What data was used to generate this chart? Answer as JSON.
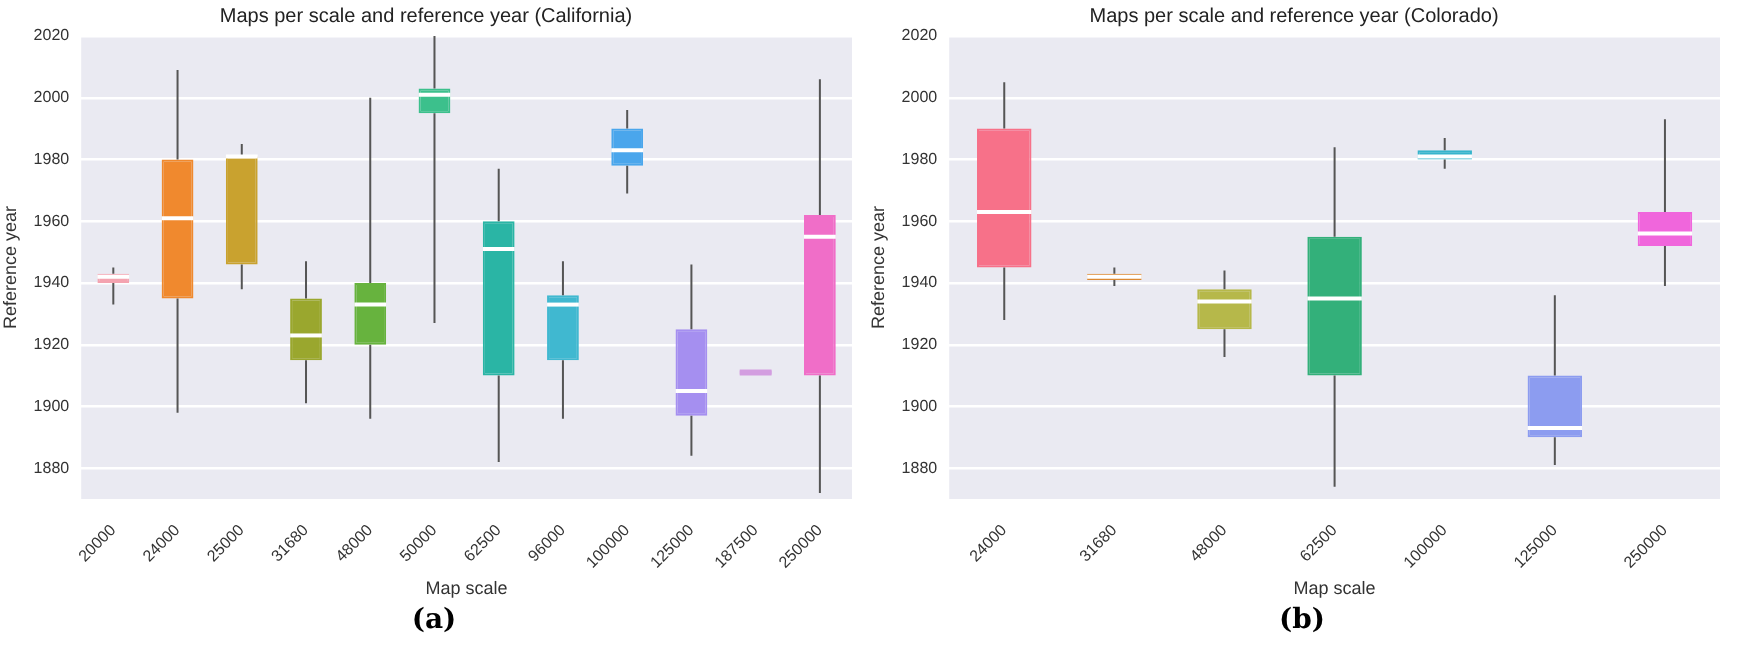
{
  "chart_data": [
    {
      "type": "box",
      "title": "Maps per scale and reference year (California)",
      "xlabel": "Map scale",
      "ylabel": "Reference year",
      "categories": [
        "20000",
        "24000",
        "25000",
        "31680",
        "48000",
        "50000",
        "62500",
        "96000",
        "100000",
        "125000",
        "187500",
        "250000"
      ],
      "boxes": [
        {
          "low": 1933,
          "q1": 1940,
          "median": 1942,
          "q3": 1943,
          "high": 1945
        },
        {
          "low": 1898,
          "q1": 1935,
          "median": 1961,
          "q3": 1980,
          "high": 2009
        },
        {
          "low": 1938,
          "q1": 1946,
          "median": 1981,
          "q3": 1981,
          "high": 1985
        },
        {
          "low": 1901,
          "q1": 1915,
          "median": 1923,
          "q3": 1935,
          "high": 1947
        },
        {
          "low": 1896,
          "q1": 1920,
          "median": 1933,
          "q3": 1940,
          "high": 2000
        },
        {
          "low": 1927,
          "q1": 1995,
          "median": 2001,
          "q3": 2003,
          "high": 2020
        },
        {
          "low": 1882,
          "q1": 1910,
          "median": 1951,
          "q3": 1960,
          "high": 1977
        },
        {
          "low": 1896,
          "q1": 1915,
          "median": 1933,
          "q3": 1936,
          "high": 1947
        },
        {
          "low": 1969,
          "q1": 1978,
          "median": 1983,
          "q3": 1990,
          "high": 1996
        },
        {
          "low": 1884,
          "q1": 1897,
          "median": 1905,
          "q3": 1925,
          "high": 1946
        },
        {
          "low": 1911,
          "q1": 1911,
          "median": 1911,
          "q3": 1911,
          "high": 1911
        },
        {
          "low": 1872,
          "q1": 1910,
          "median": 1955,
          "q3": 1962,
          "high": 2006
        }
      ],
      "colors": [
        "#f4a3b0",
        "#f0892e",
        "#c9a22f",
        "#9aa72e",
        "#67b33e",
        "#3cc08c",
        "#2ab5a5",
        "#40b8d0",
        "#4aa6ec",
        "#a58ff0",
        "#d39ee0",
        "#f06ec8"
      ],
      "ylim": [
        1870,
        2020
      ],
      "yticks": [
        1880,
        1900,
        1920,
        1940,
        1960,
        1980,
        2000,
        2020
      ],
      "grid": "y",
      "legend": false,
      "annotations": [
        "(a)"
      ]
    },
    {
      "type": "box",
      "title": "Maps per scale and reference year (Colorado)",
      "xlabel": "Map scale",
      "ylabel": "Reference year",
      "categories": [
        "24000",
        "31680",
        "48000",
        "62500",
        "100000",
        "125000",
        "250000"
      ],
      "boxes": [
        {
          "low": 1928,
          "q1": 1945,
          "median": 1963,
          "q3": 1990,
          "high": 2005
        },
        {
          "low": 1939,
          "q1": 1941,
          "median": 1942,
          "q3": 1943,
          "high": 1945
        },
        {
          "low": 1916,
          "q1": 1925,
          "median": 1934,
          "q3": 1938,
          "high": 1944
        },
        {
          "low": 1874,
          "q1": 1910,
          "median": 1935,
          "q3": 1955,
          "high": 1984
        },
        {
          "low": 1977,
          "q1": 1980,
          "median": 1981,
          "q3": 1983,
          "high": 1987
        },
        {
          "low": 1881,
          "q1": 1890,
          "median": 1893,
          "q3": 1910,
          "high": 1936
        },
        {
          "low": 1939,
          "q1": 1952,
          "median": 1956,
          "q3": 1963,
          "high": 1993
        }
      ],
      "colors": [
        "#f77189",
        "#dc8932",
        "#b6b84a",
        "#33b07a",
        "#36b4cc",
        "#8c9cf0",
        "#f066dc"
      ],
      "ylim": [
        1870,
        2020
      ],
      "yticks": [
        1880,
        1900,
        1920,
        1940,
        1960,
        1980,
        2000,
        2020
      ],
      "grid": "y",
      "legend": false,
      "annotations": [
        "(b)"
      ]
    }
  ]
}
